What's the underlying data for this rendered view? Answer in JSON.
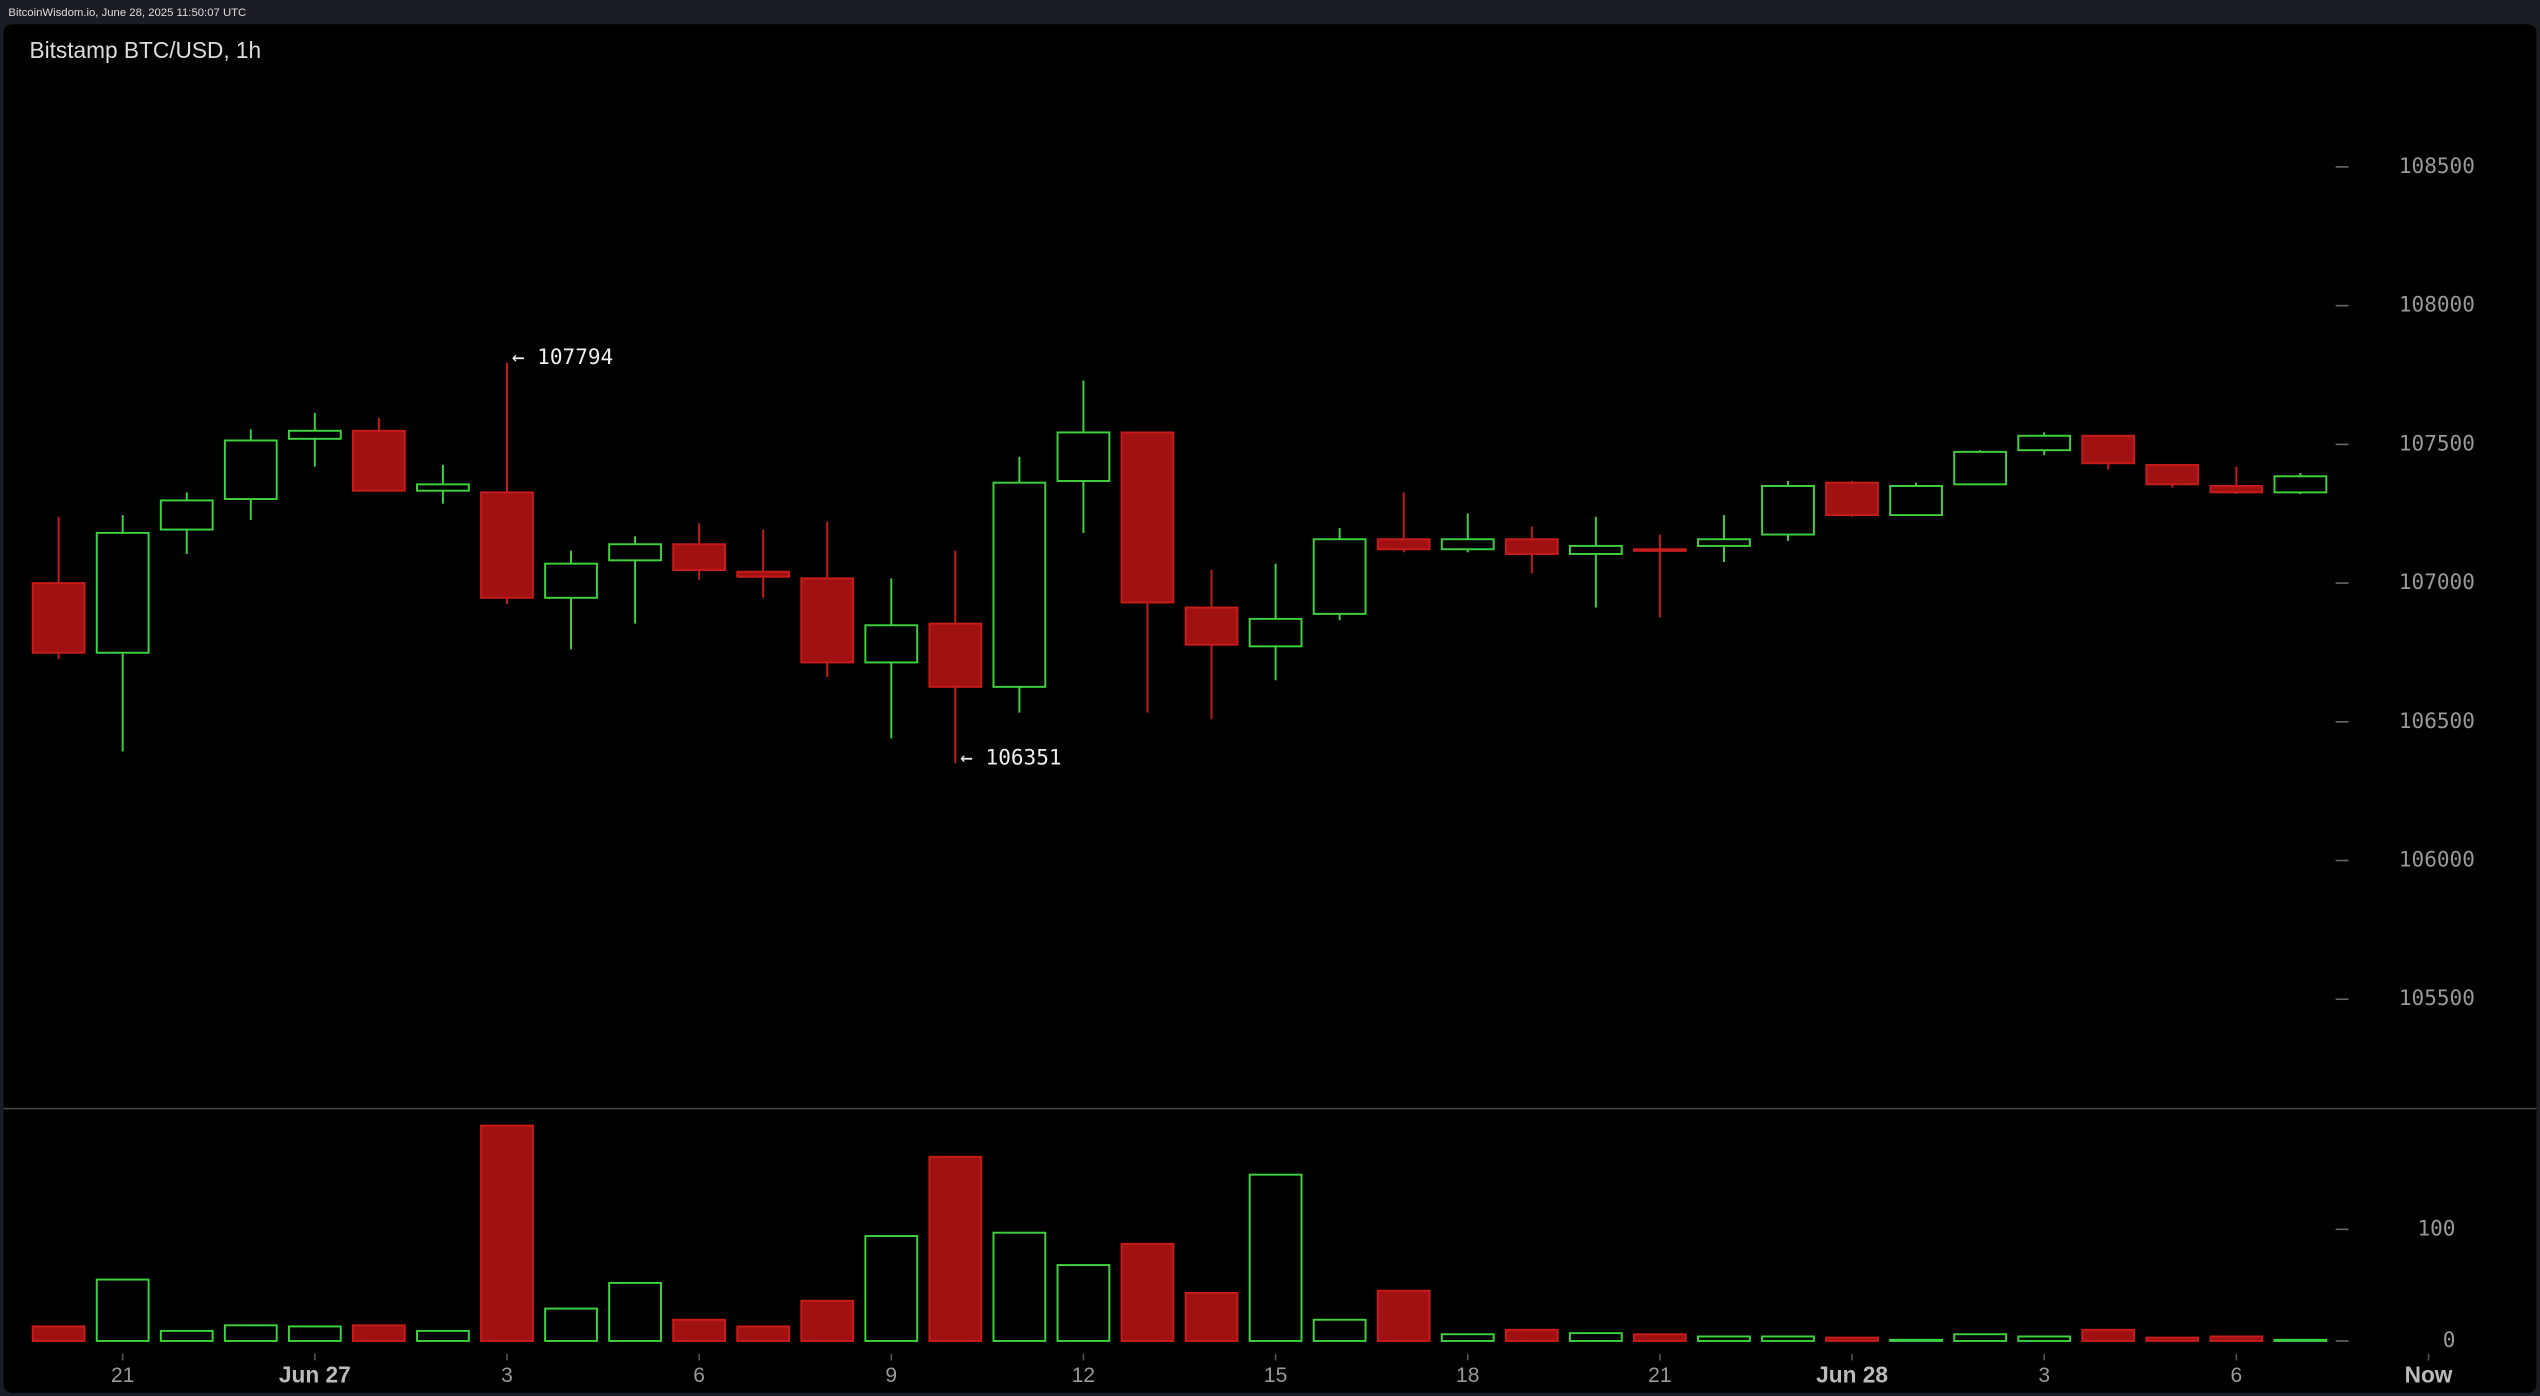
{
  "header": "BitcoinWisdom.io, June 28, 2025 11:50:07 UTC",
  "chart_data": {
    "type": "candlestick",
    "title": "Bitstamp BTC/USD, 1h",
    "up_color": "#3fd23f",
    "down_color": "#a01212",
    "open": [
      107000,
      106749,
      107193,
      107303,
      107520,
      107549,
      107333,
      107327,
      106947,
      107082,
      107140,
      107041,
      107017,
      106714,
      106854,
      106626,
      107368,
      107543,
      106912,
      106772,
      106889,
      107158,
      107122,
      107158,
      107105,
      107122,
      107134,
      107175,
      107362,
      107245,
      107356,
      107479,
      107531,
      107426,
      107350,
      107327
    ],
    "high": [
      107239,
      107245,
      107327,
      107554,
      107613,
      107595,
      107426,
      107794,
      107117,
      107169,
      107216,
      107193,
      107222,
      107017,
      107117,
      107455,
      107730,
      107543,
      107047,
      107070,
      107198,
      107327,
      107251,
      107204,
      107239,
      107175,
      107245,
      107368,
      107368,
      107362,
      107479,
      107543,
      107531,
      107426,
      107420,
      107397
    ],
    "low": [
      106726,
      106393,
      107105,
      107228,
      107420,
      107333,
      107286,
      106924,
      106761,
      106854,
      107012,
      106947,
      106661,
      106440,
      106351,
      106533,
      107181,
      106533,
      106510,
      106650,
      106866,
      107111,
      107111,
      107035,
      106912,
      106877,
      107076,
      107152,
      107239,
      107245,
      107356,
      107461,
      107409,
      107344,
      107321,
      107321
    ],
    "close": [
      106749,
      107181,
      107298,
      107514,
      107549,
      107333,
      107356,
      106947,
      107070,
      107140,
      107047,
      107023,
      106714,
      106848,
      106626,
      107362,
      107543,
      106930,
      106778,
      106871,
      107158,
      107122,
      107158,
      107105,
      107134,
      107117,
      107158,
      107350,
      107245,
      107350,
      107473,
      107531,
      107432,
      107356,
      107327,
      107385
    ],
    "volume": [
      13,
      55,
      9,
      14,
      13,
      14,
      9,
      193,
      29,
      52,
      19,
      13,
      36,
      94,
      165,
      97,
      68,
      87,
      43,
      149,
      19,
      45,
      6,
      10,
      7,
      6,
      4,
      4,
      3,
      1,
      6,
      4,
      10,
      3,
      4,
      1
    ],
    "ylim": [
      105109,
      108839
    ],
    "yticks": [
      105500,
      106000,
      106500,
      107000,
      107500,
      108000,
      108500
    ],
    "volume_ylim": [
      0,
      209
    ],
    "volume_yticks": [
      0,
      100
    ],
    "xticks": [
      {
        "value": 1,
        "label": "21"
      },
      {
        "value": 4,
        "label": "Jun 27"
      },
      {
        "value": 7,
        "label": "3"
      },
      {
        "value": 10,
        "label": "6"
      },
      {
        "value": 13,
        "label": "9"
      },
      {
        "value": 16,
        "label": "12"
      },
      {
        "value": 19,
        "label": "15"
      },
      {
        "value": 22,
        "label": "18"
      },
      {
        "value": 25,
        "label": "21"
      },
      {
        "value": 28,
        "label": "Jun 28"
      },
      {
        "value": 31,
        "label": "3"
      },
      {
        "value": 34,
        "label": "6"
      },
      {
        "value": 37,
        "label": "Now"
      }
    ],
    "annotations": [
      {
        "label": "← 107794",
        "value": 107794,
        "index": 7
      },
      {
        "label": "← 106351",
        "value": 106351,
        "index": 14
      }
    ]
  }
}
